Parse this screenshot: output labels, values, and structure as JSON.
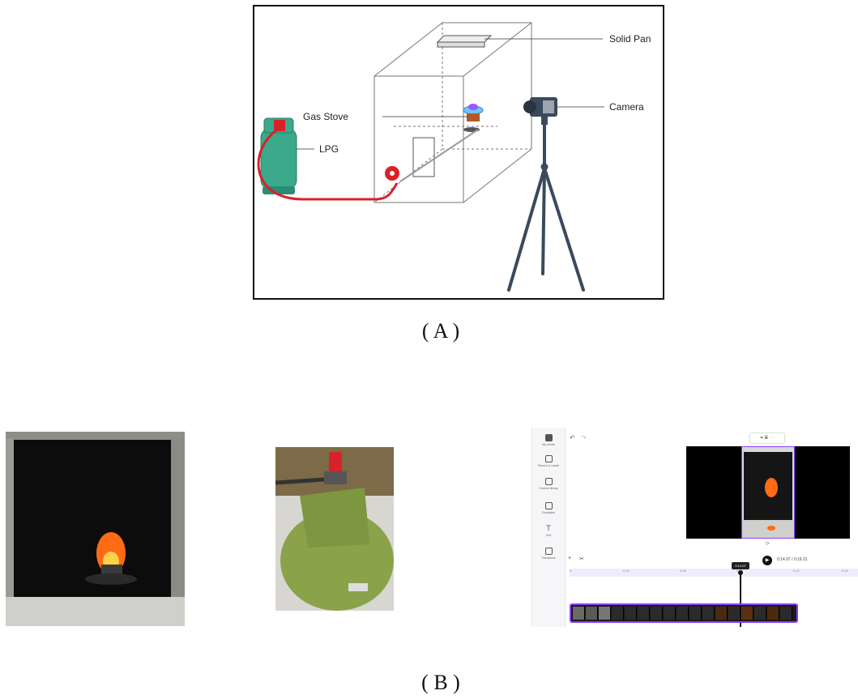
{
  "panel_a": {
    "caption": "( A )",
    "labels": {
      "solid_pan": "Solid Pan",
      "camera": "Camera",
      "gas_stove": "Gas Stove",
      "lpg": "LPG"
    }
  },
  "panel_b": {
    "caption": "( B )",
    "editor": {
      "sidebar": [
        "My media",
        "Record & create",
        "Content library",
        "Templates",
        "Text",
        "Transitions"
      ],
      "current_time": "0:14.97",
      "timecode": "0:14.97 / 0:19.31",
      "ruler": [
        "0",
        "0:03",
        "0:06",
        "0:09",
        "0:12",
        "0:15",
        "0:18",
        "0:2"
      ]
    }
  },
  "colors": {
    "lpg_tank": "#3aa98c",
    "hose": "#d8222a",
    "valve": "#d8222a",
    "tripod": "#3a4a5c",
    "flame": "#ff7a1a",
    "timeline_accent": "#8a3ffc"
  }
}
